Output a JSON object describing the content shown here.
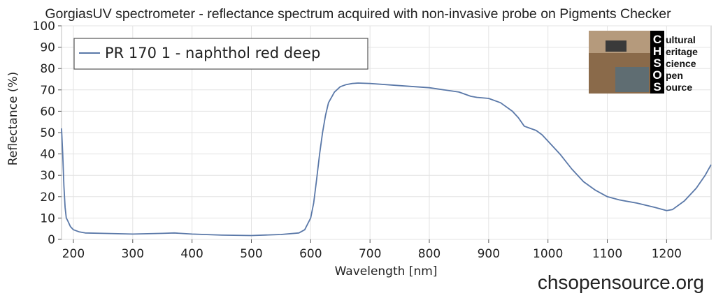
{
  "chart_data": {
    "type": "line",
    "title": "GorgiasUV spectrometer - reflectance spectrum acquired with non-invasive probe on Pigments Checker",
    "xlabel": "Wavelength [nm]",
    "ylabel": "Reflectance (%)",
    "xlim": [
      180,
      1275
    ],
    "ylim": [
      0,
      100
    ],
    "xticks": [
      200,
      300,
      400,
      500,
      600,
      700,
      800,
      900,
      1000,
      1100,
      1200
    ],
    "yticks": [
      0,
      10,
      20,
      30,
      40,
      50,
      60,
      70,
      80,
      90,
      100
    ],
    "grid": true,
    "legend_position": "top-left",
    "series": [
      {
        "name": "PR 170 1 - naphthol red deep",
        "color": "#5a78a8",
        "x": [
          180,
          182,
          184,
          186,
          188,
          190,
          195,
          200,
          210,
          220,
          250,
          300,
          350,
          370,
          400,
          450,
          500,
          550,
          580,
          590,
          600,
          605,
          610,
          615,
          620,
          625,
          630,
          640,
          650,
          660,
          670,
          680,
          700,
          750,
          800,
          850,
          870,
          880,
          900,
          920,
          940,
          950,
          960,
          970,
          980,
          990,
          1000,
          1020,
          1040,
          1060,
          1080,
          1100,
          1120,
          1150,
          1180,
          1200,
          1210,
          1230,
          1250,
          1265,
          1275
        ],
        "y": [
          52,
          40,
          25,
          15,
          10,
          9,
          6,
          4.5,
          3.5,
          3,
          2.8,
          2.5,
          2.8,
          3,
          2.5,
          2,
          1.8,
          2.3,
          3,
          4.5,
          10,
          17,
          28,
          40,
          50,
          58,
          64,
          69,
          71.5,
          72.5,
          73,
          73.2,
          73,
          72,
          71,
          69,
          67,
          66.5,
          66,
          64,
          60,
          57,
          53,
          52,
          51,
          49,
          46,
          40,
          33,
          27,
          23,
          20,
          18.5,
          17,
          15,
          13.5,
          14,
          18,
          24,
          30,
          35
        ]
      }
    ]
  },
  "logo": {
    "letters": [
      "C",
      "H",
      "S",
      "O",
      "S"
    ],
    "words": [
      "ultural",
      "eritage",
      "cience",
      "pen",
      "ource"
    ]
  },
  "footer": {
    "url": "chsopensource.org"
  }
}
